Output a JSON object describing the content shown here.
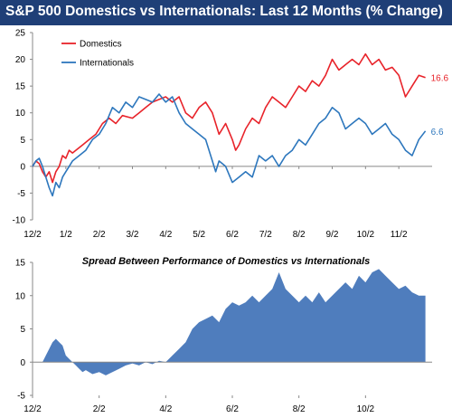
{
  "title": "S&P 500 Domestics vs Internationals: Last 12 Months (% Change)",
  "colors": {
    "title_bg": "#1f3f77",
    "domestics": "#e8232a",
    "internationals": "#2d77bd",
    "spread_fill": "#4f7dbd"
  },
  "chart_data": [
    {
      "type": "line",
      "title": "S&P 500 Domestics vs Internationals: Last 12 Months (% Change)",
      "x_ticks": [
        "12/2",
        "1/2",
        "2/2",
        "3/2",
        "4/2",
        "5/2",
        "6/2",
        "7/2",
        "8/2",
        "9/2",
        "10/2",
        "11/2"
      ],
      "x_range": [
        0,
        12
      ],
      "y_ticks": [
        -10,
        -5,
        0,
        5,
        10,
        15,
        20,
        25
      ],
      "ylim": [
        -10,
        25
      ],
      "grid": false,
      "legend": "top-left",
      "series": [
        {
          "name": "Domestics",
          "end_label": "16.6",
          "points": [
            [
              0,
              0
            ],
            [
              0.1,
              1
            ],
            [
              0.2,
              0.5
            ],
            [
              0.3,
              -1
            ],
            [
              0.4,
              -2
            ],
            [
              0.5,
              -1
            ],
            [
              0.6,
              -3
            ],
            [
              0.7,
              -1
            ],
            [
              0.8,
              0
            ],
            [
              0.9,
              2
            ],
            [
              1.0,
              1.5
            ],
            [
              1.1,
              3
            ],
            [
              1.2,
              2.5
            ],
            [
              1.3,
              3
            ],
            [
              1.5,
              4
            ],
            [
              1.7,
              5
            ],
            [
              1.9,
              6
            ],
            [
              2.1,
              8
            ],
            [
              2.3,
              9
            ],
            [
              2.5,
              8
            ],
            [
              2.7,
              9.5
            ],
            [
              3.0,
              9
            ],
            [
              3.2,
              10
            ],
            [
              3.4,
              11
            ],
            [
              3.6,
              12
            ],
            [
              3.8,
              12.5
            ],
            [
              4.0,
              13
            ],
            [
              4.2,
              12
            ],
            [
              4.4,
              13
            ],
            [
              4.6,
              10
            ],
            [
              4.8,
              9
            ],
            [
              5.0,
              11
            ],
            [
              5.2,
              12
            ],
            [
              5.4,
              10
            ],
            [
              5.6,
              6
            ],
            [
              5.8,
              8
            ],
            [
              6.0,
              5
            ],
            [
              6.1,
              3
            ],
            [
              6.2,
              4
            ],
            [
              6.4,
              7
            ],
            [
              6.6,
              9
            ],
            [
              6.8,
              8
            ],
            [
              7.0,
              11
            ],
            [
              7.2,
              13
            ],
            [
              7.4,
              12
            ],
            [
              7.6,
              11
            ],
            [
              7.8,
              13
            ],
            [
              8.0,
              15
            ],
            [
              8.2,
              14
            ],
            [
              8.4,
              16
            ],
            [
              8.6,
              15
            ],
            [
              8.8,
              17
            ],
            [
              9.0,
              20
            ],
            [
              9.2,
              18
            ],
            [
              9.4,
              19
            ],
            [
              9.6,
              20
            ],
            [
              9.8,
              19
            ],
            [
              10.0,
              21
            ],
            [
              10.2,
              19
            ],
            [
              10.4,
              20
            ],
            [
              10.6,
              18
            ],
            [
              10.8,
              18.5
            ],
            [
              11.0,
              17
            ],
            [
              11.2,
              13
            ],
            [
              11.4,
              15
            ],
            [
              11.6,
              17
            ],
            [
              11.8,
              16.6
            ]
          ]
        },
        {
          "name": "Internationals",
          "end_label": "6.6",
          "points": [
            [
              0,
              0
            ],
            [
              0.1,
              1
            ],
            [
              0.2,
              1.5
            ],
            [
              0.3,
              0
            ],
            [
              0.4,
              -2
            ],
            [
              0.5,
              -4
            ],
            [
              0.6,
              -5.5
            ],
            [
              0.7,
              -3
            ],
            [
              0.8,
              -4
            ],
            [
              0.9,
              -2
            ],
            [
              1.0,
              -1
            ],
            [
              1.1,
              0
            ],
            [
              1.2,
              1
            ],
            [
              1.4,
              2
            ],
            [
              1.6,
              3
            ],
            [
              1.8,
              5
            ],
            [
              2.0,
              6
            ],
            [
              2.2,
              8
            ],
            [
              2.4,
              11
            ],
            [
              2.6,
              10
            ],
            [
              2.8,
              12
            ],
            [
              3.0,
              11
            ],
            [
              3.2,
              13
            ],
            [
              3.4,
              12.5
            ],
            [
              3.6,
              12
            ],
            [
              3.8,
              13.5
            ],
            [
              4.0,
              12
            ],
            [
              4.2,
              13
            ],
            [
              4.4,
              10
            ],
            [
              4.6,
              8
            ],
            [
              4.8,
              7
            ],
            [
              5.0,
              6
            ],
            [
              5.2,
              5
            ],
            [
              5.4,
              1
            ],
            [
              5.5,
              -1
            ],
            [
              5.6,
              1
            ],
            [
              5.8,
              0
            ],
            [
              6.0,
              -3
            ],
            [
              6.2,
              -2
            ],
            [
              6.4,
              -1
            ],
            [
              6.6,
              -2
            ],
            [
              6.8,
              2
            ],
            [
              7.0,
              1
            ],
            [
              7.2,
              2
            ],
            [
              7.4,
              0
            ],
            [
              7.6,
              2
            ],
            [
              7.8,
              3
            ],
            [
              8.0,
              5
            ],
            [
              8.2,
              4
            ],
            [
              8.4,
              6
            ],
            [
              8.6,
              8
            ],
            [
              8.8,
              9
            ],
            [
              9.0,
              11
            ],
            [
              9.2,
              10
            ],
            [
              9.4,
              7
            ],
            [
              9.6,
              8
            ],
            [
              9.8,
              9
            ],
            [
              10.0,
              8
            ],
            [
              10.2,
              6
            ],
            [
              10.4,
              7
            ],
            [
              10.6,
              8
            ],
            [
              10.8,
              6
            ],
            [
              11.0,
              5
            ],
            [
              11.2,
              3
            ],
            [
              11.4,
              2
            ],
            [
              11.6,
              5
            ],
            [
              11.8,
              6.6
            ]
          ]
        }
      ]
    },
    {
      "type": "area",
      "title": "Spread Between Performance of Domestics vs Internationals",
      "x_ticks": [
        "12/2",
        "2/2",
        "4/2",
        "6/2",
        "8/2",
        "10/2"
      ],
      "x_range": [
        0,
        12
      ],
      "y_ticks": [
        -5,
        0,
        5,
        10,
        15
      ],
      "ylim": [
        -5,
        15
      ],
      "grid": false,
      "series": [
        {
          "name": "",
          "points": [
            [
              0,
              0
            ],
            [
              0.3,
              0
            ],
            [
              0.4,
              1
            ],
            [
              0.5,
              2
            ],
            [
              0.6,
              3
            ],
            [
              0.7,
              3.5
            ],
            [
              0.8,
              3
            ],
            [
              0.9,
              2.5
            ],
            [
              1.0,
              1
            ],
            [
              1.1,
              0.5
            ],
            [
              1.2,
              0
            ],
            [
              1.3,
              -0.5
            ],
            [
              1.4,
              -1
            ],
            [
              1.5,
              -1.5
            ],
            [
              1.6,
              -1.2
            ],
            [
              1.8,
              -1.8
            ],
            [
              2.0,
              -1.5
            ],
            [
              2.2,
              -2
            ],
            [
              2.4,
              -1.5
            ],
            [
              2.6,
              -1
            ],
            [
              2.8,
              -0.5
            ],
            [
              3.0,
              -0.2
            ],
            [
              3.2,
              -0.5
            ],
            [
              3.4,
              0
            ],
            [
              3.6,
              -0.3
            ],
            [
              3.8,
              0.2
            ],
            [
              4.0,
              0
            ],
            [
              4.2,
              1
            ],
            [
              4.4,
              2
            ],
            [
              4.6,
              3
            ],
            [
              4.8,
              5
            ],
            [
              5.0,
              6
            ],
            [
              5.2,
              6.5
            ],
            [
              5.4,
              7
            ],
            [
              5.6,
              6
            ],
            [
              5.8,
              8
            ],
            [
              6.0,
              9
            ],
            [
              6.2,
              8.5
            ],
            [
              6.4,
              9
            ],
            [
              6.6,
              10
            ],
            [
              6.8,
              9
            ],
            [
              7.0,
              10
            ],
            [
              7.2,
              11
            ],
            [
              7.4,
              13.5
            ],
            [
              7.6,
              11
            ],
            [
              7.8,
              10
            ],
            [
              8.0,
              9
            ],
            [
              8.2,
              10
            ],
            [
              8.4,
              9
            ],
            [
              8.6,
              10.5
            ],
            [
              8.8,
              9
            ],
            [
              9.0,
              10
            ],
            [
              9.2,
              11
            ],
            [
              9.4,
              12
            ],
            [
              9.6,
              11
            ],
            [
              9.8,
              13
            ],
            [
              10.0,
              12
            ],
            [
              10.2,
              13.5
            ],
            [
              10.4,
              14
            ],
            [
              10.6,
              13
            ],
            [
              10.8,
              12
            ],
            [
              11.0,
              11
            ],
            [
              11.2,
              11.5
            ],
            [
              11.4,
              10.5
            ],
            [
              11.6,
              10
            ],
            [
              11.8,
              10
            ]
          ]
        }
      ]
    }
  ]
}
